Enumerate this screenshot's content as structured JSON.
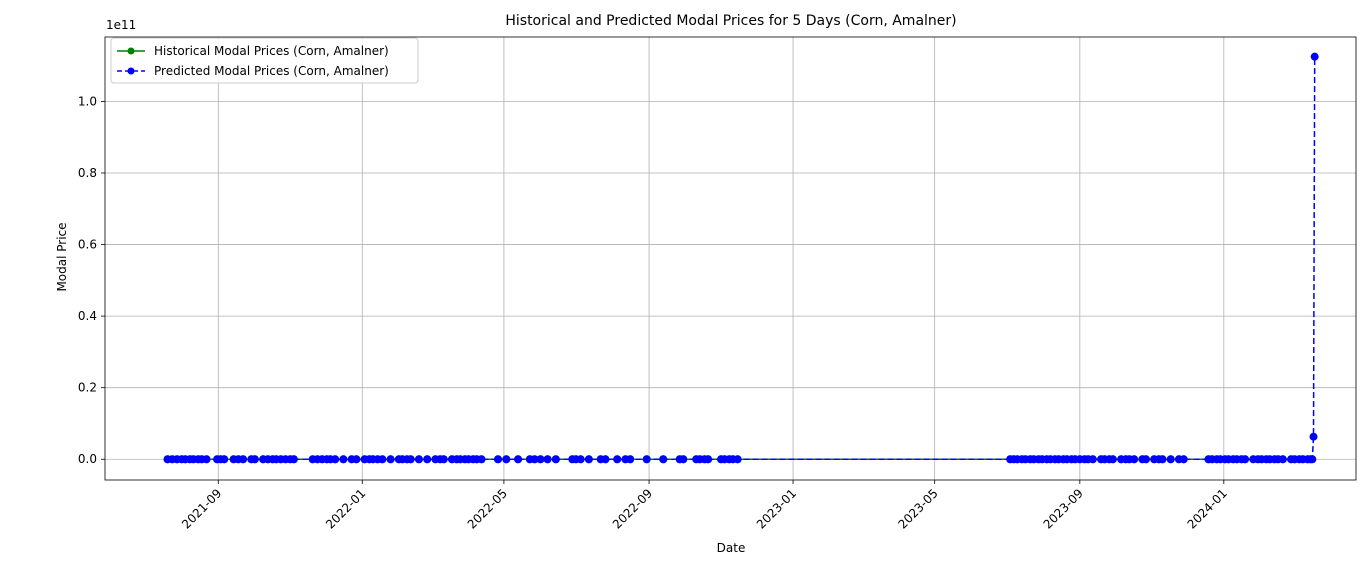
{
  "chart_data": {
    "type": "line",
    "title": "Historical and Predicted Modal Prices for 5 Days (Corn, Amalner)",
    "xlabel": "Date",
    "ylabel": "Modal Price",
    "y_offset_label": "1e11",
    "xlim": [
      "2021-05-28",
      "2024-04-22"
    ],
    "ylim": [
      -0.058,
      1.18
    ],
    "y_unit_multiplier": "1e11",
    "grid": true,
    "legend_position": "top-left",
    "x_ticks": [
      "2021-09",
      "2022-01",
      "2022-05",
      "2022-09",
      "2023-01",
      "2023-05",
      "2023-09",
      "2024-01"
    ],
    "y_ticks": [
      0.0,
      0.2,
      0.4,
      0.6,
      0.8,
      1.0
    ],
    "y_tick_labels": [
      "0.0",
      "0.2",
      "0.4",
      "0.6",
      "0.8",
      "1.0"
    ],
    "series": [
      {
        "name": "Historical Modal Prices (Corn, Amalner)",
        "color": "#008000",
        "style": "solid",
        "marker": "circle",
        "x": [
          "2021-07-20",
          "2021-07-24",
          "2021-07-28",
          "2021-08-01",
          "2021-08-04",
          "2021-08-08",
          "2021-08-11",
          "2021-08-15",
          "2021-08-18",
          "2021-08-22",
          "2021-08-31",
          "2021-09-03",
          "2021-09-06",
          "2021-09-14",
          "2021-09-18",
          "2021-09-22",
          "2021-09-29",
          "2021-10-02",
          "2021-10-09",
          "2021-10-13",
          "2021-10-17",
          "2021-10-20",
          "2021-10-24",
          "2021-10-28",
          "2021-11-01",
          "2021-11-04",
          "2021-11-20",
          "2021-11-24",
          "2021-11-28",
          "2021-12-02",
          "2021-12-05",
          "2021-12-09",
          "2021-12-16",
          "2021-12-23",
          "2021-12-27",
          "2022-01-03",
          "2022-01-07",
          "2022-01-10",
          "2022-01-14",
          "2022-01-18",
          "2022-01-25",
          "2022-02-01",
          "2022-02-04",
          "2022-02-08",
          "2022-02-11",
          "2022-02-18",
          "2022-02-25",
          "2022-03-04",
          "2022-03-08",
          "2022-03-11",
          "2022-03-18",
          "2022-03-22",
          "2022-03-25",
          "2022-03-29",
          "2022-04-01",
          "2022-04-05",
          "2022-04-08",
          "2022-04-12",
          "2022-04-26",
          "2022-05-03",
          "2022-05-13",
          "2022-05-23",
          "2022-05-27",
          "2022-06-01",
          "2022-06-07",
          "2022-06-14",
          "2022-06-28",
          "2022-07-01",
          "2022-07-05",
          "2022-07-12",
          "2022-07-22",
          "2022-07-26",
          "2022-08-05",
          "2022-08-12",
          "2022-08-16",
          "2022-08-30",
          "2022-09-13",
          "2022-09-27",
          "2022-09-30",
          "2022-10-11",
          "2022-10-14",
          "2022-10-18",
          "2022-10-21",
          "2022-11-01",
          "2022-11-04",
          "2022-11-08",
          "2022-11-11",
          "2022-11-15",
          "2023-07-04",
          "2023-07-07",
          "2023-07-10",
          "2023-07-14",
          "2023-07-17",
          "2023-07-21",
          "2023-07-24",
          "2023-07-28",
          "2023-07-31",
          "2023-08-04",
          "2023-08-07",
          "2023-08-11",
          "2023-08-14",
          "2023-08-18",
          "2023-08-21",
          "2023-08-25",
          "2023-08-28",
          "2023-09-01",
          "2023-09-05",
          "2023-09-08",
          "2023-09-12",
          "2023-09-19",
          "2023-09-22",
          "2023-09-26",
          "2023-09-29",
          "2023-10-06",
          "2023-10-10",
          "2023-10-13",
          "2023-10-17",
          "2023-10-24",
          "2023-10-27",
          "2023-11-03",
          "2023-11-07",
          "2023-11-10",
          "2023-11-17",
          "2023-11-24",
          "2023-11-28",
          "2023-12-19",
          "2023-12-22",
          "2023-12-26",
          "2023-12-29",
          "2024-01-02",
          "2024-01-05",
          "2024-01-09",
          "2024-01-12",
          "2024-01-16",
          "2024-01-19",
          "2024-01-26",
          "2024-01-30",
          "2024-02-02",
          "2024-02-06",
          "2024-02-09",
          "2024-02-13",
          "2024-02-16",
          "2024-02-20",
          "2024-02-27",
          "2024-03-01",
          "2024-03-05",
          "2024-03-08",
          "2024-03-12"
        ],
        "y_value": 0.0
      },
      {
        "name": "Predicted Modal Prices (Corn, Amalner)",
        "color": "#0000ff",
        "style": "dashed",
        "marker": "circle",
        "x": [
          "2021-07-20",
          "2021-07-24",
          "2021-07-28",
          "2021-08-01",
          "2021-08-04",
          "2021-08-08",
          "2021-08-11",
          "2021-08-15",
          "2021-08-18",
          "2021-08-22",
          "2021-08-31",
          "2021-09-03",
          "2021-09-06",
          "2021-09-14",
          "2021-09-18",
          "2021-09-22",
          "2021-09-29",
          "2021-10-02",
          "2021-10-09",
          "2021-10-13",
          "2021-10-17",
          "2021-10-20",
          "2021-10-24",
          "2021-10-28",
          "2021-11-01",
          "2021-11-04",
          "2021-11-20",
          "2021-11-24",
          "2021-11-28",
          "2021-12-02",
          "2021-12-05",
          "2021-12-09",
          "2021-12-16",
          "2021-12-23",
          "2021-12-27",
          "2022-01-03",
          "2022-01-07",
          "2022-01-10",
          "2022-01-14",
          "2022-01-18",
          "2022-01-25",
          "2022-02-01",
          "2022-02-04",
          "2022-02-08",
          "2022-02-11",
          "2022-02-18",
          "2022-02-25",
          "2022-03-04",
          "2022-03-08",
          "2022-03-11",
          "2022-03-18",
          "2022-03-22",
          "2022-03-25",
          "2022-03-29",
          "2022-04-01",
          "2022-04-05",
          "2022-04-08",
          "2022-04-12",
          "2022-04-26",
          "2022-05-03",
          "2022-05-13",
          "2022-05-23",
          "2022-05-27",
          "2022-06-01",
          "2022-06-07",
          "2022-06-14",
          "2022-06-28",
          "2022-07-01",
          "2022-07-05",
          "2022-07-12",
          "2022-07-22",
          "2022-07-26",
          "2022-08-05",
          "2022-08-12",
          "2022-08-16",
          "2022-08-30",
          "2022-09-13",
          "2022-09-27",
          "2022-09-30",
          "2022-10-11",
          "2022-10-14",
          "2022-10-18",
          "2022-10-21",
          "2022-11-01",
          "2022-11-04",
          "2022-11-08",
          "2022-11-11",
          "2022-11-15",
          "2023-07-04",
          "2023-07-07",
          "2023-07-10",
          "2023-07-14",
          "2023-07-17",
          "2023-07-21",
          "2023-07-24",
          "2023-07-28",
          "2023-07-31",
          "2023-08-04",
          "2023-08-07",
          "2023-08-11",
          "2023-08-14",
          "2023-08-18",
          "2023-08-21",
          "2023-08-25",
          "2023-08-28",
          "2023-09-01",
          "2023-09-05",
          "2023-09-08",
          "2023-09-12",
          "2023-09-19",
          "2023-09-22",
          "2023-09-26",
          "2023-09-29",
          "2023-10-06",
          "2023-10-10",
          "2023-10-13",
          "2023-10-17",
          "2023-10-24",
          "2023-10-27",
          "2023-11-03",
          "2023-11-07",
          "2023-11-10",
          "2023-11-17",
          "2023-11-24",
          "2023-11-28",
          "2023-12-19",
          "2023-12-22",
          "2023-12-26",
          "2023-12-29",
          "2024-01-02",
          "2024-01-05",
          "2024-01-09",
          "2024-01-12",
          "2024-01-16",
          "2024-01-19",
          "2024-01-26",
          "2024-01-30",
          "2024-02-02",
          "2024-02-06",
          "2024-02-09",
          "2024-02-13",
          "2024-02-16",
          "2024-02-20",
          "2024-02-27",
          "2024-03-01",
          "2024-03-05",
          "2024-03-08",
          "2024-03-12",
          "2024-03-14",
          "2024-03-15",
          "2024-03-16",
          "2024-03-17",
          "2024-03-18"
        ],
        "y_value_default": 0.0,
        "y_overrides": {
          "2024-03-17": 0.063,
          "2024-03-18": 1.125
        }
      }
    ]
  }
}
